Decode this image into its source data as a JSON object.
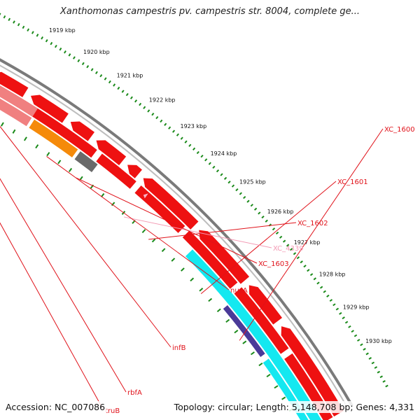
{
  "title": "Xanthomonas campestris pv. campestris str. 8004, complete ge...",
  "footer": {
    "accession": "Accession: NC_007086",
    "summary": "Topology: circular; Length: 5,148,708 bp; Genes: 4,331"
  },
  "scale": {
    "ticks": [
      {
        "pos_kbp": 1919,
        "label": "1919 kbp"
      },
      {
        "pos_kbp": 1920,
        "label": "1920 kbp"
      },
      {
        "pos_kbp": 1921,
        "label": "1921 kbp"
      },
      {
        "pos_kbp": 1922,
        "label": "1922 kbp"
      },
      {
        "pos_kbp": 1923,
        "label": "1923 kbp"
      },
      {
        "pos_kbp": 1924,
        "label": "1924 kbp"
      },
      {
        "pos_kbp": 1925,
        "label": "1925 kbp"
      },
      {
        "pos_kbp": 1926,
        "label": "1926 kbp"
      },
      {
        "pos_kbp": 1927,
        "label": "1927 kbp"
      },
      {
        "pos_kbp": 1928,
        "label": "1928 kbp"
      },
      {
        "pos_kbp": 1929,
        "label": "1929 kbp"
      },
      {
        "pos_kbp": 1930,
        "label": "1930 kbp"
      }
    ]
  },
  "gene_labels": [
    {
      "name": "XC_1600",
      "color": "#e0121a"
    },
    {
      "name": "XC_1601",
      "color": "#e0121a"
    },
    {
      "name": "XC_1602",
      "color": "#e0121a"
    },
    {
      "name": "XC_4339",
      "color": "#f39ab4"
    },
    {
      "name": "XC_1603",
      "color": "#e0121a"
    },
    {
      "name": "nusA",
      "color": "#e0121a"
    },
    {
      "name": "infB",
      "color": "#e0121a"
    },
    {
      "name": "rbfA",
      "color": "#e0121a"
    },
    {
      "name": "truB",
      "color": "#e0121a"
    }
  ],
  "colors": {
    "backbone": "#8a8a8a",
    "cds": "#ee1111",
    "cds_light": "#f08080",
    "gene_cyan": "#14e8f0",
    "gene_dark": "#6a6a6a",
    "gene_orange": "#f58a0a",
    "gene_purple": "#4a3a98",
    "gene_pink": "#f7b3c7",
    "tick": "#1a8a1a"
  }
}
